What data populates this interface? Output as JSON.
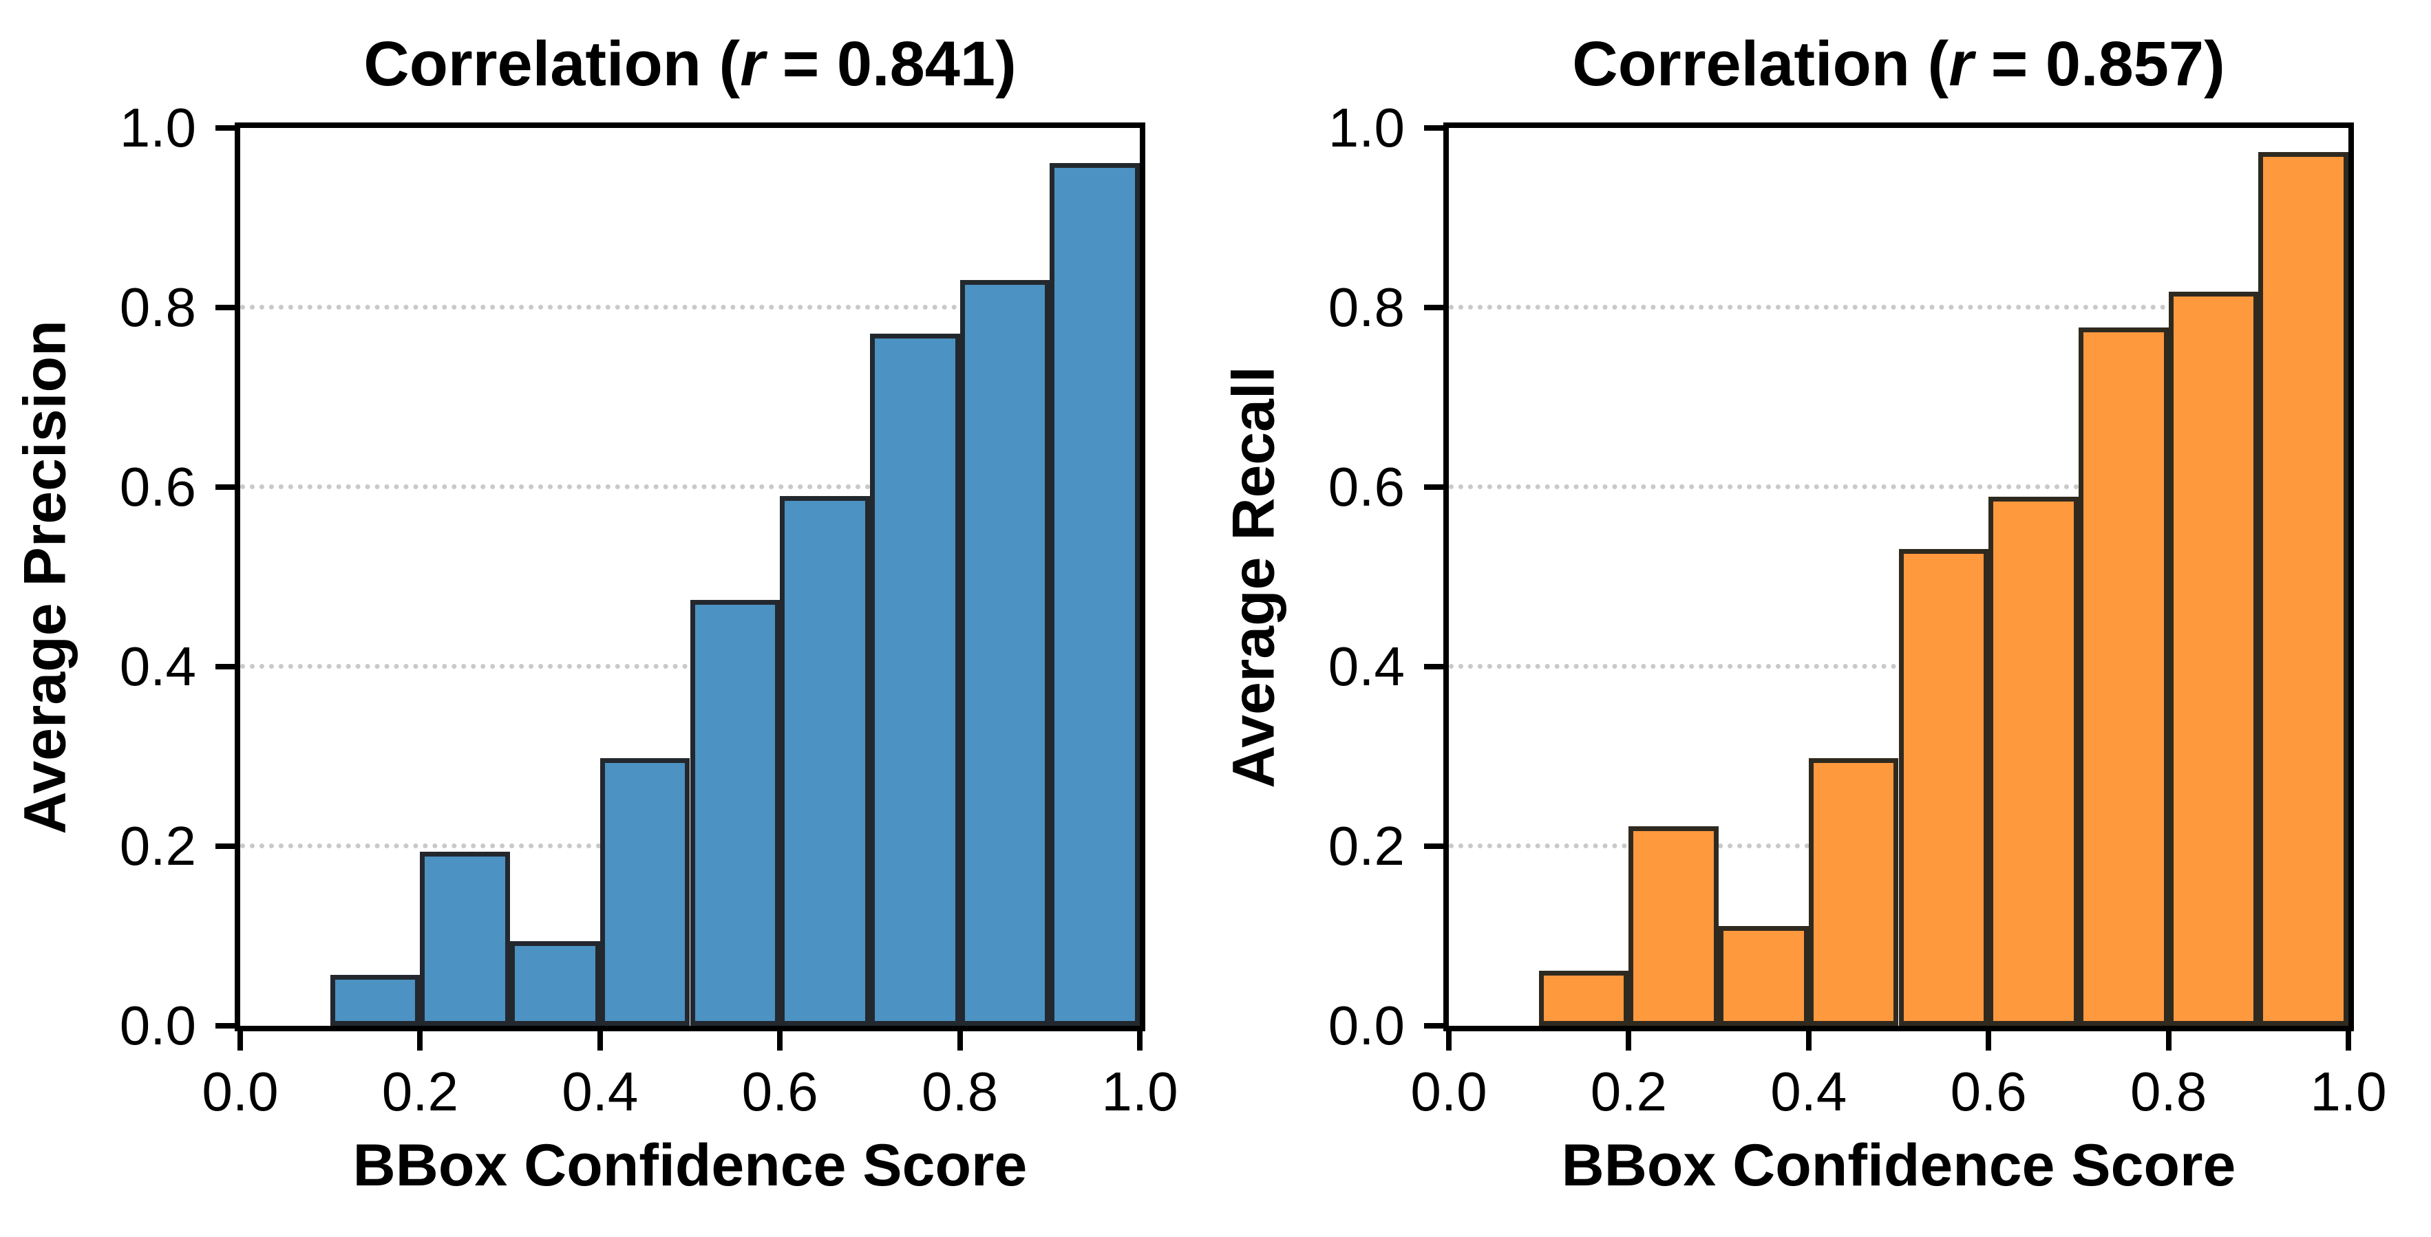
{
  "figure": {
    "background": "#ffffff",
    "text_color": "#000000",
    "spine_color": "#000000",
    "grid_color": "#c9c9c9",
    "grid_style": "dotted"
  },
  "chart_data": [
    {
      "type": "bar",
      "title": "Correlation (r = 0.841)",
      "title_parts": {
        "prefix": "Correlation (",
        "italic": "r",
        "suffix": " = 0.841)"
      },
      "xlabel": "BBox Confidence Score",
      "ylabel": "Average Precision",
      "xlim": [
        0.0,
        1.0
      ],
      "ylim": [
        0.0,
        1.0
      ],
      "xticks": [
        "0.0",
        "0.2",
        "0.4",
        "0.6",
        "0.8",
        "1.0"
      ],
      "yticks": [
        "0.0",
        "0.2",
        "0.4",
        "0.6",
        "0.8",
        "1.0"
      ],
      "grid_y": [
        0.2,
        0.4,
        0.6,
        0.8
      ],
      "legend": "none",
      "bin_width": 0.1,
      "bin_starts": [
        0.1,
        0.2,
        0.3,
        0.4,
        0.5,
        0.6,
        0.7,
        0.8,
        0.9
      ],
      "values": [
        0.057,
        0.194,
        0.094,
        0.298,
        0.474,
        0.59,
        0.771,
        0.831,
        0.961
      ],
      "bar_color": "#4C92C3",
      "bar_edge_color": "#23282e"
    },
    {
      "type": "bar",
      "title": "Correlation (r = 0.857)",
      "title_parts": {
        "prefix": "Correlation (",
        "italic": "r",
        "suffix": " = 0.857)"
      },
      "xlabel": "BBox Confidence Score",
      "ylabel": "Average Recall",
      "xlim": [
        0.0,
        1.0
      ],
      "ylim": [
        0.0,
        1.0
      ],
      "xticks": [
        "0.0",
        "0.2",
        "0.4",
        "0.6",
        "0.8",
        "1.0"
      ],
      "yticks": [
        "0.0",
        "0.2",
        "0.4",
        "0.6",
        "0.8",
        "1.0"
      ],
      "grid_y": [
        0.2,
        0.4,
        0.6,
        0.8
      ],
      "legend": "none",
      "bin_width": 0.1,
      "bin_starts": [
        0.1,
        0.2,
        0.3,
        0.4,
        0.5,
        0.6,
        0.7,
        0.8,
        0.9
      ],
      "values": [
        0.061,
        0.222,
        0.111,
        0.298,
        0.531,
        0.589,
        0.778,
        0.818,
        0.973
      ],
      "bar_color": "#FF993E",
      "bar_edge_color": "#2f2a20"
    }
  ]
}
